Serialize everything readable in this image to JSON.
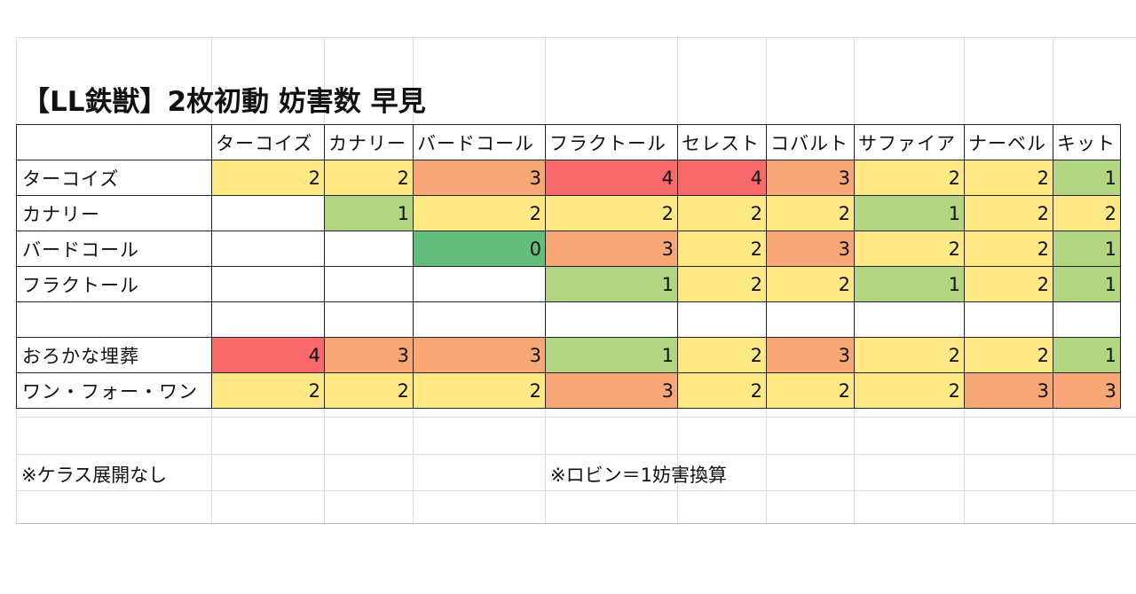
{
  "title": "【LL鉄獣】2枚初動 妨害数 早見",
  "columns": [
    "ターコイズ",
    "カナリー",
    "バードコール",
    "フラクトール",
    "セレスト",
    "コバルト",
    "サファイア",
    "ナーベル",
    "キット"
  ],
  "rows": [
    {
      "label": "ターコイズ",
      "values": [
        "2",
        "2",
        "3",
        "4",
        "4",
        "3",
        "2",
        "2",
        "1"
      ]
    },
    {
      "label": "カナリー",
      "values": [
        "",
        "1",
        "2",
        "2",
        "2",
        "2",
        "1",
        "2",
        "2"
      ]
    },
    {
      "label": "バードコール",
      "values": [
        "",
        "",
        "0",
        "3",
        "2",
        "3",
        "2",
        "2",
        "1"
      ]
    },
    {
      "label": "フラクトール",
      "values": [
        "",
        "",
        "",
        "1",
        "2",
        "2",
        "1",
        "2",
        "1"
      ]
    },
    {
      "label": "",
      "values": [
        "",
        "",
        "",
        "",
        "",
        "",
        "",
        "",
        ""
      ]
    },
    {
      "label": "おろかな埋葬",
      "values": [
        "4",
        "3",
        "3",
        "1",
        "2",
        "3",
        "2",
        "2",
        "1"
      ]
    },
    {
      "label": "ワン・フォー・ワン",
      "values": [
        "2",
        "2",
        "2",
        "3",
        "2",
        "2",
        "2",
        "3",
        "3"
      ]
    }
  ],
  "scale_colors": {
    "0": "#63be7b",
    "1": "#b1d580",
    "2": "#ffe985",
    "3": "#f8a776",
    "4": "#f8696b"
  },
  "notes": {
    "no_kerasu": "※ケラス展開なし",
    "robin": "※ロビン＝1妨害換算"
  }
}
